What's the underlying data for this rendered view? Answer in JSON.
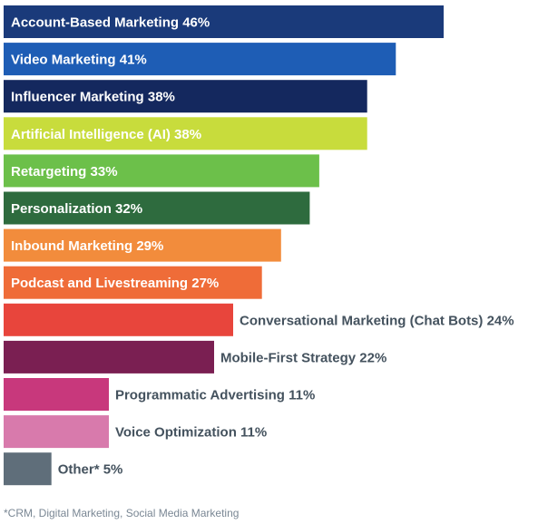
{
  "chart_data": {
    "type": "bar",
    "orientation": "horizontal",
    "title": "",
    "xlabel": "",
    "ylabel": "",
    "xlim": [
      0,
      48
    ],
    "grid": false,
    "legend": "none",
    "categories": [
      "Account-Based Marketing",
      "Video Marketing",
      "Influencer Marketing",
      "Artificial Intelligence (AI)",
      "Retargeting",
      "Personalization",
      "Inbound Marketing",
      "Podcast and Livestreaming",
      "Conversational Marketing (Chat Bots)",
      "Mobile-First Strategy",
      "Programmatic Advertising",
      "Voice Optimization",
      "Other*"
    ],
    "values": [
      46,
      41,
      38,
      38,
      33,
      32,
      29,
      27,
      24,
      22,
      11,
      11,
      5
    ],
    "labels": [
      "Account-Based Marketing 46%",
      "Video Marketing 41%",
      "Influencer Marketing 38%",
      "Artificial Intelligence (AI) 38%",
      "Retargeting 33%",
      "Personalization 32%",
      "Inbound Marketing 29%",
      "Podcast and Livestreaming 27%",
      "Conversational Marketing (Chat Bots) 24%",
      "Mobile-First Strategy 22%",
      "Programmatic Advertising 11%",
      "Voice Optimization 11%",
      "Other* 5%"
    ],
    "colors": [
      "#1a3a7a",
      "#1e5db5",
      "#14285e",
      "#c8dc3c",
      "#6cc04a",
      "#2e6b3e",
      "#f28c3c",
      "#ef6c38",
      "#e8453c",
      "#7a1f52",
      "#c8387c",
      "#d87aac",
      "#5f6e7a"
    ],
    "label_inside": [
      true,
      true,
      true,
      true,
      true,
      true,
      true,
      true,
      false,
      false,
      false,
      false,
      false
    ]
  },
  "footnote": "*CRM, Digital Marketing, Social Media Marketing"
}
